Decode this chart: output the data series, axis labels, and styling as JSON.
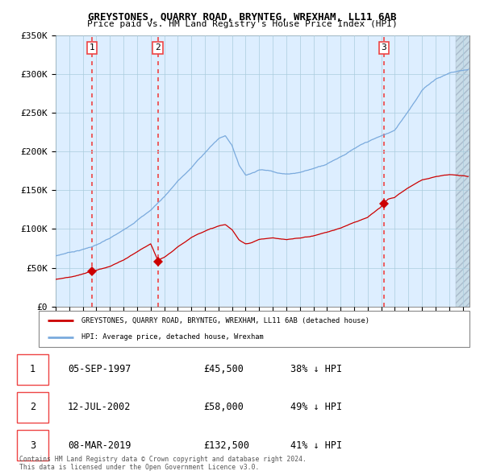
{
  "title": "GREYSTONES, QUARRY ROAD, BRYNTEG, WREXHAM, LL11 6AB",
  "subtitle": "Price paid vs. HM Land Registry's House Price Index (HPI)",
  "legend_red": "GREYSTONES, QUARRY ROAD, BRYNTEG, WREXHAM, LL11 6AB (detached house)",
  "legend_blue": "HPI: Average price, detached house, Wrexham",
  "sales": [
    {
      "label": "1",
      "date": "05-SEP-1997",
      "price": 45500,
      "year": 1997.67,
      "hpi_pct": "38% ↓ HPI"
    },
    {
      "label": "2",
      "date": "12-JUL-2002",
      "price": 58000,
      "year": 2002.53,
      "hpi_pct": "49% ↓ HPI"
    },
    {
      "label": "3",
      "date": "08-MAR-2019",
      "price": 132500,
      "year": 2019.18,
      "hpi_pct": "41% ↓ HPI"
    }
  ],
  "copyright": "Contains HM Land Registry data © Crown copyright and database right 2024.\nThis data is licensed under the Open Government Licence v3.0.",
  "ylim": [
    0,
    350000
  ],
  "xlim_start": 1995.0,
  "xlim_end": 2025.5,
  "red_color": "#cc0000",
  "blue_color": "#7aaadd",
  "dashed_color": "#ee4444",
  "background_color": "#ffffff",
  "chart_bg": "#ddeeff",
  "grid_color": "#aaccdd",
  "hatch_color": "#bbccdd"
}
